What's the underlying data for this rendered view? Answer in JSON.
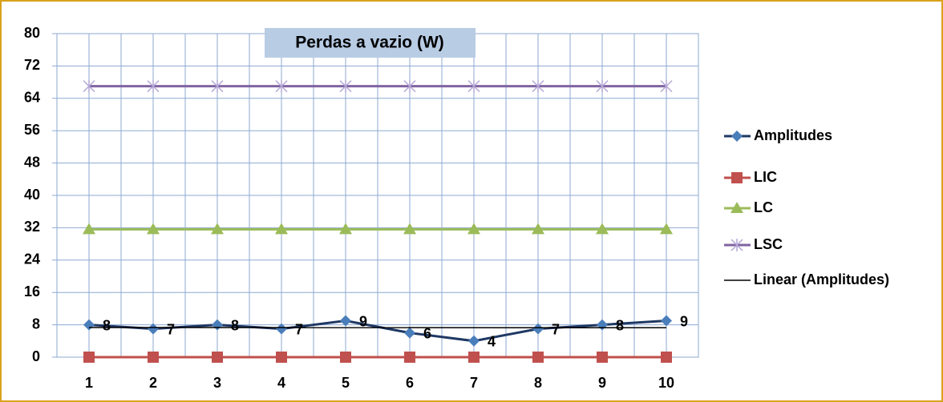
{
  "chart_data": {
    "type": "line",
    "title": "Perdas a vazio (W)",
    "categories": [
      "1",
      "2",
      "3",
      "4",
      "5",
      "6",
      "7",
      "8",
      "9",
      "10"
    ],
    "series": [
      {
        "name": "Amplitudes",
        "color": "#2f5597",
        "marker": "diamond",
        "data_labels": true,
        "values": [
          8,
          7,
          8,
          7,
          9,
          6,
          4,
          7,
          8,
          9
        ]
      },
      {
        "name": "LIC",
        "color": "#c0504d",
        "marker": "square",
        "values": [
          0,
          0,
          0,
          0,
          0,
          0,
          0,
          0,
          0,
          0
        ]
      },
      {
        "name": "LC",
        "color": "#9bbb59",
        "marker": "triangle",
        "values": [
          31.6,
          31.6,
          31.6,
          31.6,
          31.6,
          31.6,
          31.6,
          31.6,
          31.6,
          31.6
        ]
      },
      {
        "name": "LSC",
        "color": "#8064a2",
        "marker": "x",
        "values": [
          67,
          67,
          67,
          67,
          67,
          67,
          67,
          67,
          67,
          67
        ]
      },
      {
        "name": "Linear (Amplitudes)",
        "color": "#000000",
        "trend": "linear"
      }
    ],
    "ylim": [
      0,
      80
    ],
    "yticks": [
      0,
      8,
      16,
      24,
      32,
      40,
      48,
      56,
      64,
      72,
      80
    ],
    "grid": true,
    "legend": "right"
  }
}
